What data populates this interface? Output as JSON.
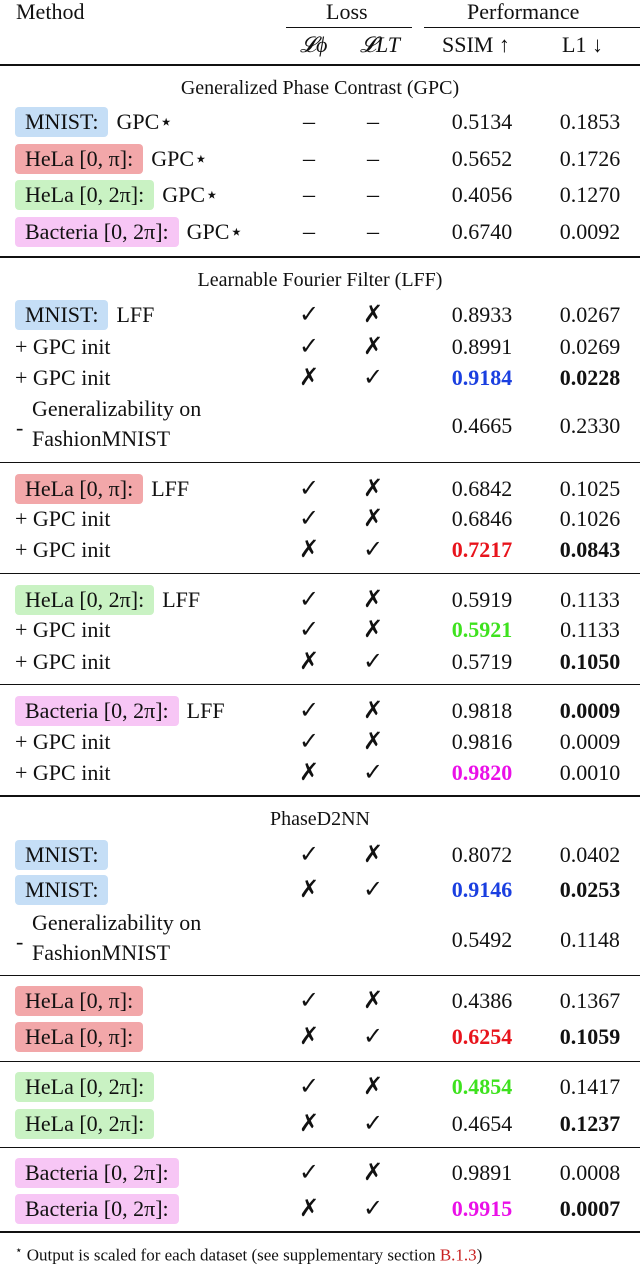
{
  "header": {
    "method": "Method",
    "loss": "Loss",
    "performance": "Performance",
    "loss_phi": "𝓛ϕ",
    "loss_lt": "𝓛LT",
    "ssim": "SSIM ↑",
    "l1": "L1 ↓"
  },
  "marks": {
    "check": "✓",
    "cross": "✗",
    "dash": "–"
  },
  "colors": {
    "blue_highlight": "#c5def6",
    "red_highlight": "#f2a7a9",
    "green_highlight": "#c9f2c3",
    "pink_highlight": "#f7c6f5",
    "best_blue": "#1a3fe0",
    "best_red": "#e8141c",
    "best_green": "#3ee21e",
    "best_magenta": "#ea10e8",
    "link_red": "#c81e1e"
  },
  "sections": {
    "gpc": "Generalized Phase Contrast (GPC)",
    "lff": "Learnable Fourier Filter (LFF)",
    "d2nn": "PhaseD2NN"
  },
  "gpc_rows": [
    {
      "dataset": "MNIST:",
      "method": "GPC⋆",
      "loss_phi": "–",
      "loss_lt": "–",
      "ssim": "0.5134",
      "l1": "0.1853"
    },
    {
      "dataset": "HeLa [0, π]:",
      "method": "GPC⋆",
      "loss_phi": "–",
      "loss_lt": "–",
      "ssim": "0.5652",
      "l1": "0.1726"
    },
    {
      "dataset": "HeLa [0, 2π]:",
      "method": "GPC⋆",
      "loss_phi": "–",
      "loss_lt": "–",
      "ssim": "0.4056",
      "l1": "0.1270"
    },
    {
      "dataset": "Bacteria [0, 2π]:",
      "method": "GPC⋆",
      "loss_phi": "–",
      "loss_lt": "–",
      "ssim": "0.6740",
      "l1": "0.0092"
    }
  ],
  "lff_rows": [
    {
      "dataset": "MNIST:",
      "method": "LFF",
      "loss_phi": "✓",
      "loss_lt": "✗",
      "ssim": "0.8933",
      "l1": "0.0267"
    },
    {
      "method": "+ GPC init",
      "loss_phi": "✓",
      "loss_lt": "✗",
      "ssim": "0.8991",
      "l1": "0.0269"
    },
    {
      "method": "+ GPC init",
      "loss_phi": "✗",
      "loss_lt": "✓",
      "ssim": "0.9184",
      "l1": "0.0228"
    },
    {
      "method_line1": "Generalizability on",
      "method_line2": "FashionMNIST",
      "prefix": "-",
      "ssim": "0.4665",
      "l1": "0.2330"
    },
    {
      "dataset": "HeLa [0, π]:",
      "method": "LFF",
      "loss_phi": "✓",
      "loss_lt": "✗",
      "ssim": "0.6842",
      "l1": "0.1025"
    },
    {
      "method": "+ GPC init",
      "loss_phi": "✓",
      "loss_lt": "✗",
      "ssim": "0.6846",
      "l1": "0.1026"
    },
    {
      "method": "+ GPC init",
      "loss_phi": "✗",
      "loss_lt": "✓",
      "ssim": "0.7217",
      "l1": "0.0843"
    },
    {
      "dataset": "HeLa [0, 2π]:",
      "method": "LFF",
      "loss_phi": "✓",
      "loss_lt": "✗",
      "ssim": "0.5919",
      "l1": "0.1133"
    },
    {
      "method": "+ GPC init",
      "loss_phi": "✓",
      "loss_lt": "✗",
      "ssim": "0.5921",
      "l1": "0.1133"
    },
    {
      "method": "+ GPC init",
      "loss_phi": "✗",
      "loss_lt": "✓",
      "ssim": "0.5719",
      "l1": "0.1050"
    },
    {
      "dataset": "Bacteria [0, 2π]:",
      "method": "LFF",
      "loss_phi": "✓",
      "loss_lt": "✗",
      "ssim": "0.9818",
      "l1": "0.0009"
    },
    {
      "method": "+ GPC init",
      "loss_phi": "✓",
      "loss_lt": "✗",
      "ssim": "0.9816",
      "l1": "0.0009"
    },
    {
      "method": "+ GPC init",
      "loss_phi": "✗",
      "loss_lt": "✓",
      "ssim": "0.9820",
      "l1": "0.0010"
    }
  ],
  "d2nn_rows": [
    {
      "dataset": "MNIST:",
      "loss_phi": "✓",
      "loss_lt": "✗",
      "ssim": "0.8072",
      "l1": "0.0402"
    },
    {
      "dataset": "MNIST:",
      "loss_phi": "✗",
      "loss_lt": "✓",
      "ssim": "0.9146",
      "l1": "0.0253"
    },
    {
      "method_line1": "Generalizability on",
      "method_line2": "FashionMNIST",
      "prefix": "-",
      "ssim": "0.5492",
      "l1": "0.1148"
    },
    {
      "dataset": "HeLa [0, π]:",
      "loss_phi": "✓",
      "loss_lt": "✗",
      "ssim": "0.4386",
      "l1": "0.1367"
    },
    {
      "dataset": "HeLa [0, π]:",
      "loss_phi": "✗",
      "loss_lt": "✓",
      "ssim": "0.6254",
      "l1": "0.1059"
    },
    {
      "dataset": "HeLa [0, 2π]:",
      "loss_phi": "✓",
      "loss_lt": "✗",
      "ssim": "0.4854",
      "l1": "0.1417"
    },
    {
      "dataset": "HeLa [0, 2π]:",
      "loss_phi": "✗",
      "loss_lt": "✓",
      "ssim": "0.4654",
      "l1": "0.1237"
    },
    {
      "dataset": "Bacteria [0, 2π]:",
      "loss_phi": "✓",
      "loss_lt": "✗",
      "ssim": "0.9891",
      "l1": "0.0008"
    },
    {
      "dataset": "Bacteria [0, 2π]:",
      "loss_phi": "✗",
      "loss_lt": "✓",
      "ssim": "0.9915",
      "l1": "0.0007"
    }
  ],
  "footnote": {
    "star": "⋆",
    "text": "Output is scaled for each dataset (see supplementary section ",
    "link": "B.1.3",
    "close": ")"
  }
}
